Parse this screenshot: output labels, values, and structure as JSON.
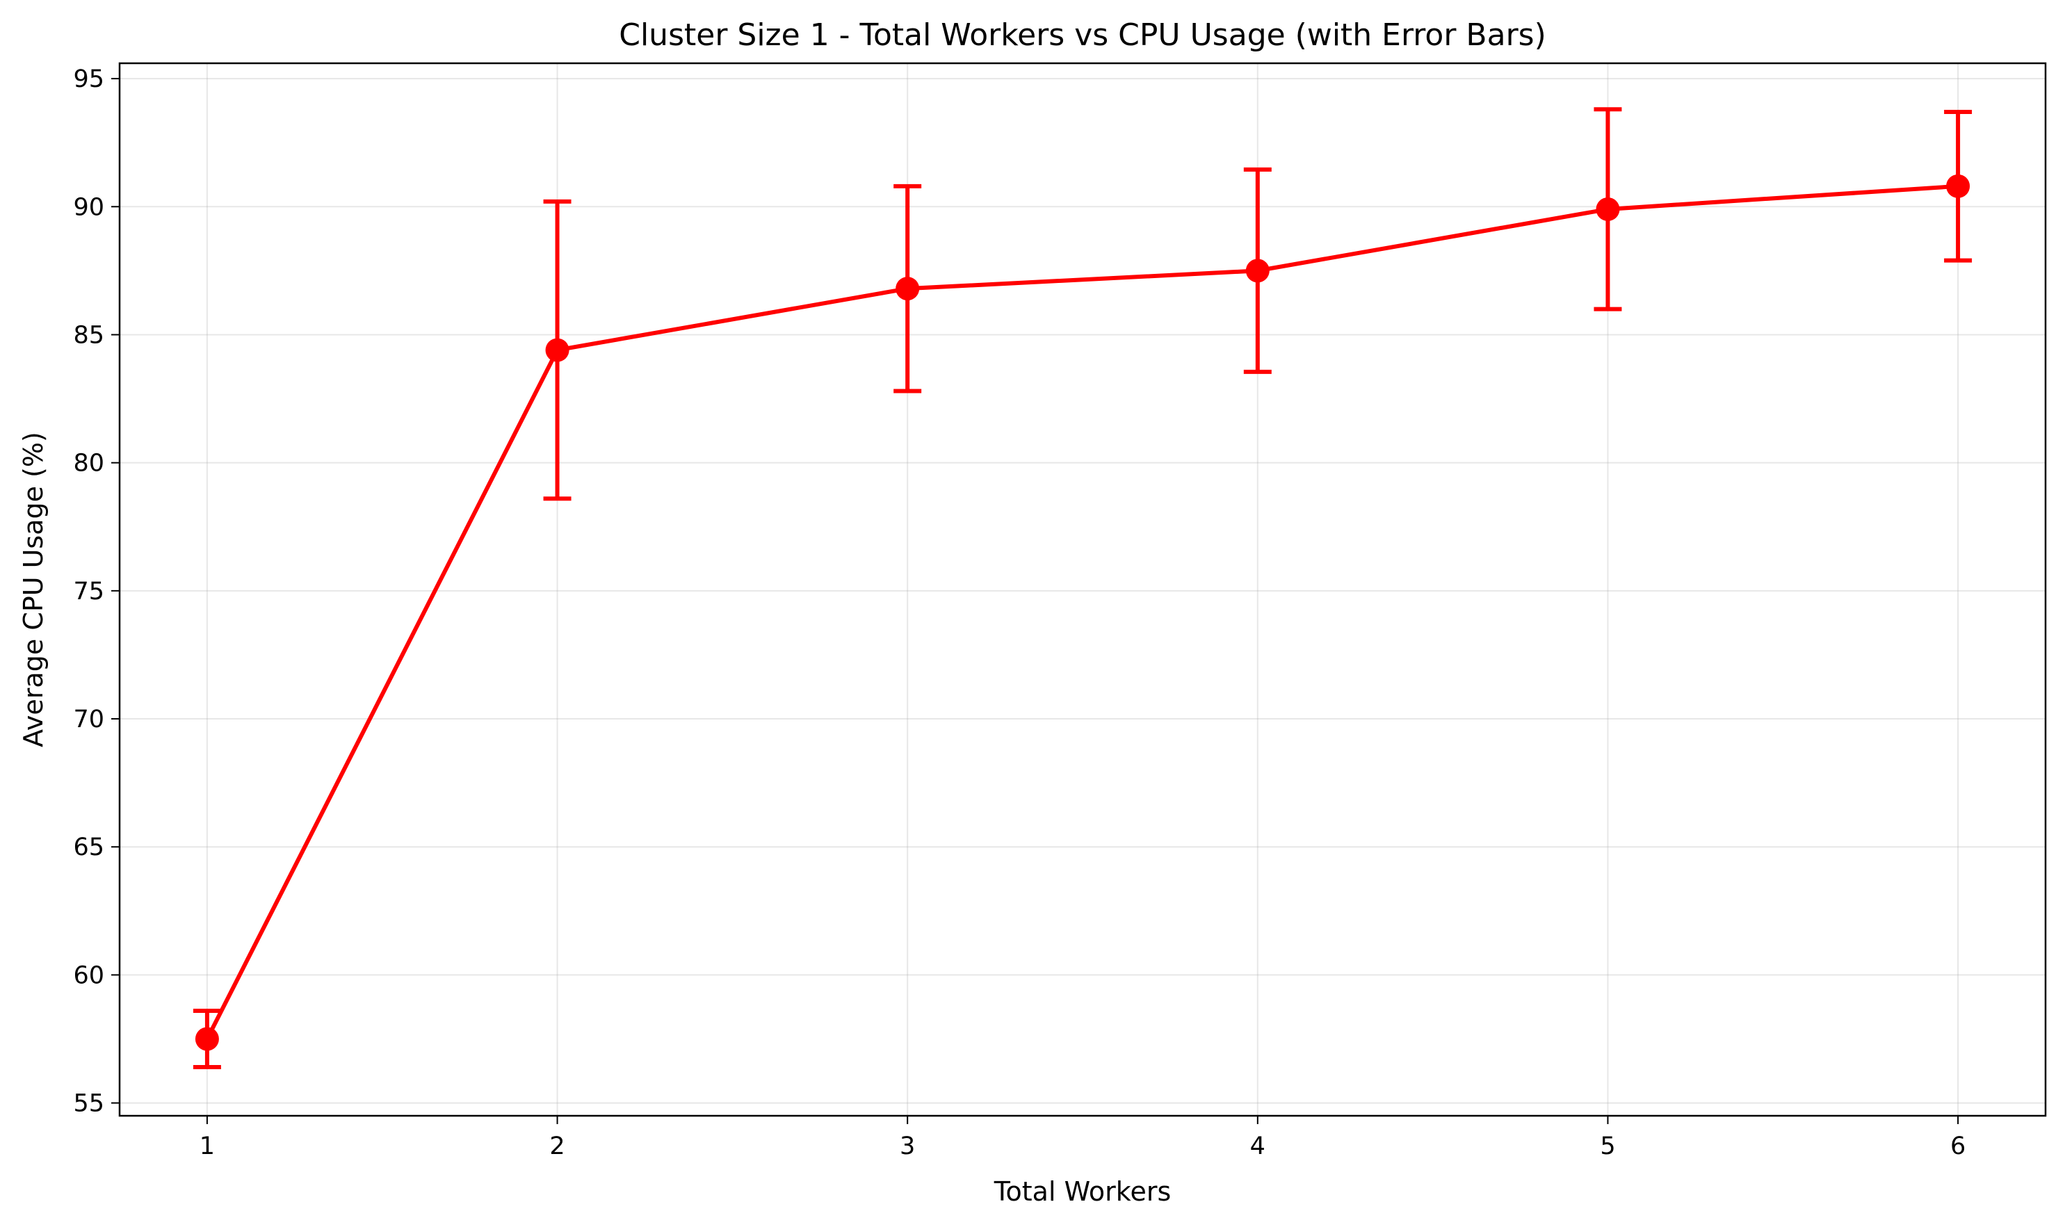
{
  "chart_data": {
    "type": "line",
    "title": "Cluster Size 1 - Total Workers vs CPU Usage (with Error Bars)",
    "xlabel": "Total Workers",
    "ylabel": "Average CPU Usage (%)",
    "x": [
      1,
      2,
      3,
      4,
      5,
      6
    ],
    "xlim": [
      0.75,
      6.25
    ],
    "ylim": [
      54.5,
      95.6
    ],
    "xticks": [
      1,
      2,
      3,
      4,
      5,
      6
    ],
    "yticks": [
      55,
      60,
      65,
      70,
      75,
      80,
      85,
      90,
      95
    ],
    "grid": true,
    "series": [
      {
        "values": [
          57.5,
          84.4,
          86.8,
          87.5,
          89.9,
          90.8
        ],
        "error": [
          1.1,
          5.8,
          4.0,
          3.95,
          3.9,
          2.9
        ],
        "color": "#ff0000",
        "marker": "circle"
      }
    ]
  }
}
